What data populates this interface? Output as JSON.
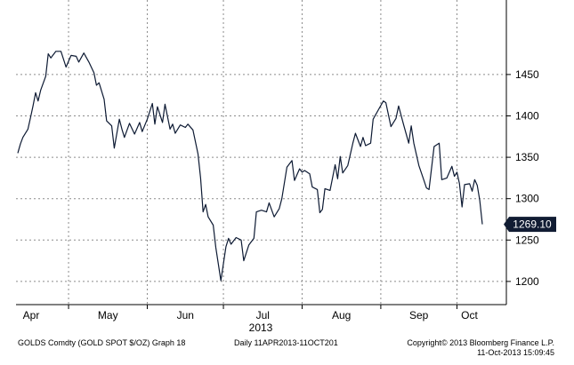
{
  "chart_data": {
    "type": "line",
    "x_axis": {
      "labels": [
        "Apr",
        "May",
        "Jun",
        "Jul",
        "Aug",
        "Sep",
        "Oct"
      ],
      "year_label": "2013",
      "range": [
        "2013-04-11",
        "2013-10-11"
      ]
    },
    "y_axis": {
      "ticks": [
        1200,
        1250,
        1300,
        1350,
        1400,
        1450
      ],
      "ylim": [
        1172,
        1540
      ],
      "position": "right"
    },
    "grid": true,
    "last_value_label": "1269.10",
    "series": [
      {
        "values": [
          [
            "2013-04-11",
            1355
          ],
          [
            "2013-04-12",
            1366
          ],
          [
            "2013-04-13",
            1374
          ],
          [
            "2013-04-15",
            1384
          ],
          [
            "2013-04-16",
            1398
          ],
          [
            "2013-04-17",
            1412
          ],
          [
            "2013-04-18",
            1428
          ],
          [
            "2013-04-19",
            1418
          ],
          [
            "2013-04-20",
            1431
          ],
          [
            "2013-04-22",
            1448
          ],
          [
            "2013-04-23",
            1475
          ],
          [
            "2013-04-24",
            1470
          ],
          [
            "2013-04-26",
            1478
          ],
          [
            "2013-04-28",
            1478
          ],
          [
            "2013-04-30",
            1459
          ],
          [
            "2013-05-01",
            1466
          ],
          [
            "2013-05-02",
            1473
          ],
          [
            "2013-05-04",
            1472
          ],
          [
            "2013-05-05",
            1465
          ],
          [
            "2013-05-07",
            1476
          ],
          [
            "2013-05-09",
            1465
          ],
          [
            "2013-05-11",
            1452
          ],
          [
            "2013-05-12",
            1437
          ],
          [
            "2013-05-13",
            1440
          ],
          [
            "2013-05-15",
            1420
          ],
          [
            "2013-05-16",
            1394
          ],
          [
            "2013-05-18",
            1388
          ],
          [
            "2013-05-19",
            1361
          ],
          [
            "2013-05-21",
            1396
          ],
          [
            "2013-05-22",
            1384
          ],
          [
            "2013-05-23",
            1374
          ],
          [
            "2013-05-25",
            1391
          ],
          [
            "2013-05-27",
            1378
          ],
          [
            "2013-05-29",
            1392
          ],
          [
            "2013-05-30",
            1381
          ],
          [
            "2013-06-01",
            1396
          ],
          [
            "2013-06-03",
            1415
          ],
          [
            "2013-06-04",
            1390
          ],
          [
            "2013-06-05",
            1411
          ],
          [
            "2013-06-07",
            1392
          ],
          [
            "2013-06-08",
            1414
          ],
          [
            "2013-06-10",
            1384
          ],
          [
            "2013-06-11",
            1390
          ],
          [
            "2013-06-12",
            1379
          ],
          [
            "2013-06-14",
            1389
          ],
          [
            "2013-06-16",
            1386
          ],
          [
            "2013-06-17",
            1390
          ],
          [
            "2013-06-19",
            1383
          ],
          [
            "2013-06-21",
            1354
          ],
          [
            "2013-06-22",
            1325
          ],
          [
            "2013-06-23",
            1284
          ],
          [
            "2013-06-24",
            1293
          ],
          [
            "2013-06-25",
            1278
          ],
          [
            "2013-06-27",
            1268
          ],
          [
            "2013-06-28",
            1241
          ],
          [
            "2013-06-30",
            1201
          ],
          [
            "2013-07-02",
            1242
          ],
          [
            "2013-07-03",
            1252
          ],
          [
            "2013-07-04",
            1245
          ],
          [
            "2013-07-06",
            1253
          ],
          [
            "2013-07-08",
            1250
          ],
          [
            "2013-07-09",
            1225
          ],
          [
            "2013-07-11",
            1244
          ],
          [
            "2013-07-13",
            1252
          ],
          [
            "2013-07-14",
            1284
          ],
          [
            "2013-07-16",
            1286
          ],
          [
            "2013-07-18",
            1284
          ],
          [
            "2013-07-19",
            1295
          ],
          [
            "2013-07-21",
            1278
          ],
          [
            "2013-07-23",
            1288
          ],
          [
            "2013-07-24",
            1300
          ],
          [
            "2013-07-26",
            1338
          ],
          [
            "2013-07-28",
            1346
          ],
          [
            "2013-07-29",
            1322
          ],
          [
            "2013-07-31",
            1336
          ],
          [
            "2013-08-01",
            1332
          ],
          [
            "2013-08-02",
            1334
          ],
          [
            "2013-08-04",
            1330
          ],
          [
            "2013-08-05",
            1314
          ],
          [
            "2013-08-07",
            1311
          ],
          [
            "2013-08-08",
            1283
          ],
          [
            "2013-08-09",
            1287
          ],
          [
            "2013-08-10",
            1312
          ],
          [
            "2013-08-12",
            1310
          ],
          [
            "2013-08-14",
            1341
          ],
          [
            "2013-08-15",
            1324
          ],
          [
            "2013-08-16",
            1351
          ],
          [
            "2013-08-17",
            1331
          ],
          [
            "2013-08-19",
            1340
          ],
          [
            "2013-08-21",
            1367
          ],
          [
            "2013-08-22",
            1379
          ],
          [
            "2013-08-24",
            1363
          ],
          [
            "2013-08-25",
            1374
          ],
          [
            "2013-08-26",
            1364
          ],
          [
            "2013-08-28",
            1367
          ],
          [
            "2013-08-29",
            1396
          ],
          [
            "2013-08-31",
            1407
          ],
          [
            "2013-09-02",
            1418
          ],
          [
            "2013-09-03",
            1416
          ],
          [
            "2013-09-05",
            1387
          ],
          [
            "2013-09-07",
            1397
          ],
          [
            "2013-09-08",
            1412
          ],
          [
            "2013-09-10",
            1389
          ],
          [
            "2013-09-12",
            1367
          ],
          [
            "2013-09-13",
            1388
          ],
          [
            "2013-09-14",
            1367
          ],
          [
            "2013-09-16",
            1340
          ],
          [
            "2013-09-18",
            1322
          ],
          [
            "2013-09-19",
            1313
          ],
          [
            "2013-09-20",
            1311
          ],
          [
            "2013-09-22",
            1363
          ],
          [
            "2013-09-24",
            1367
          ],
          [
            "2013-09-25",
            1323
          ],
          [
            "2013-09-27",
            1325
          ],
          [
            "2013-09-29",
            1339
          ],
          [
            "2013-09-30",
            1327
          ],
          [
            "2013-10-01",
            1332
          ],
          [
            "2013-10-02",
            1318
          ],
          [
            "2013-10-03",
            1290
          ],
          [
            "2013-10-04",
            1317
          ],
          [
            "2013-10-06",
            1318
          ],
          [
            "2013-10-07",
            1309
          ],
          [
            "2013-10-08",
            1323
          ],
          [
            "2013-10-09",
            1316
          ],
          [
            "2013-10-10",
            1298
          ],
          [
            "2013-10-11",
            1269
          ]
        ]
      }
    ]
  },
  "footer": {
    "left": "GOLDS Comdty (GOLD SPOT $/OZ) Graph 18",
    "center": "Daily 11APR2013-11OCT201",
    "right_line1": "Copyright© 2013 Bloomberg Finance L.P.",
    "right_line2": "11-Oct-2013 15:09:45"
  },
  "colors": {
    "line": "#0d1a33",
    "grid": "#8c8c8c",
    "label_bg": "#111c33",
    "label_text": "#ffffff"
  }
}
